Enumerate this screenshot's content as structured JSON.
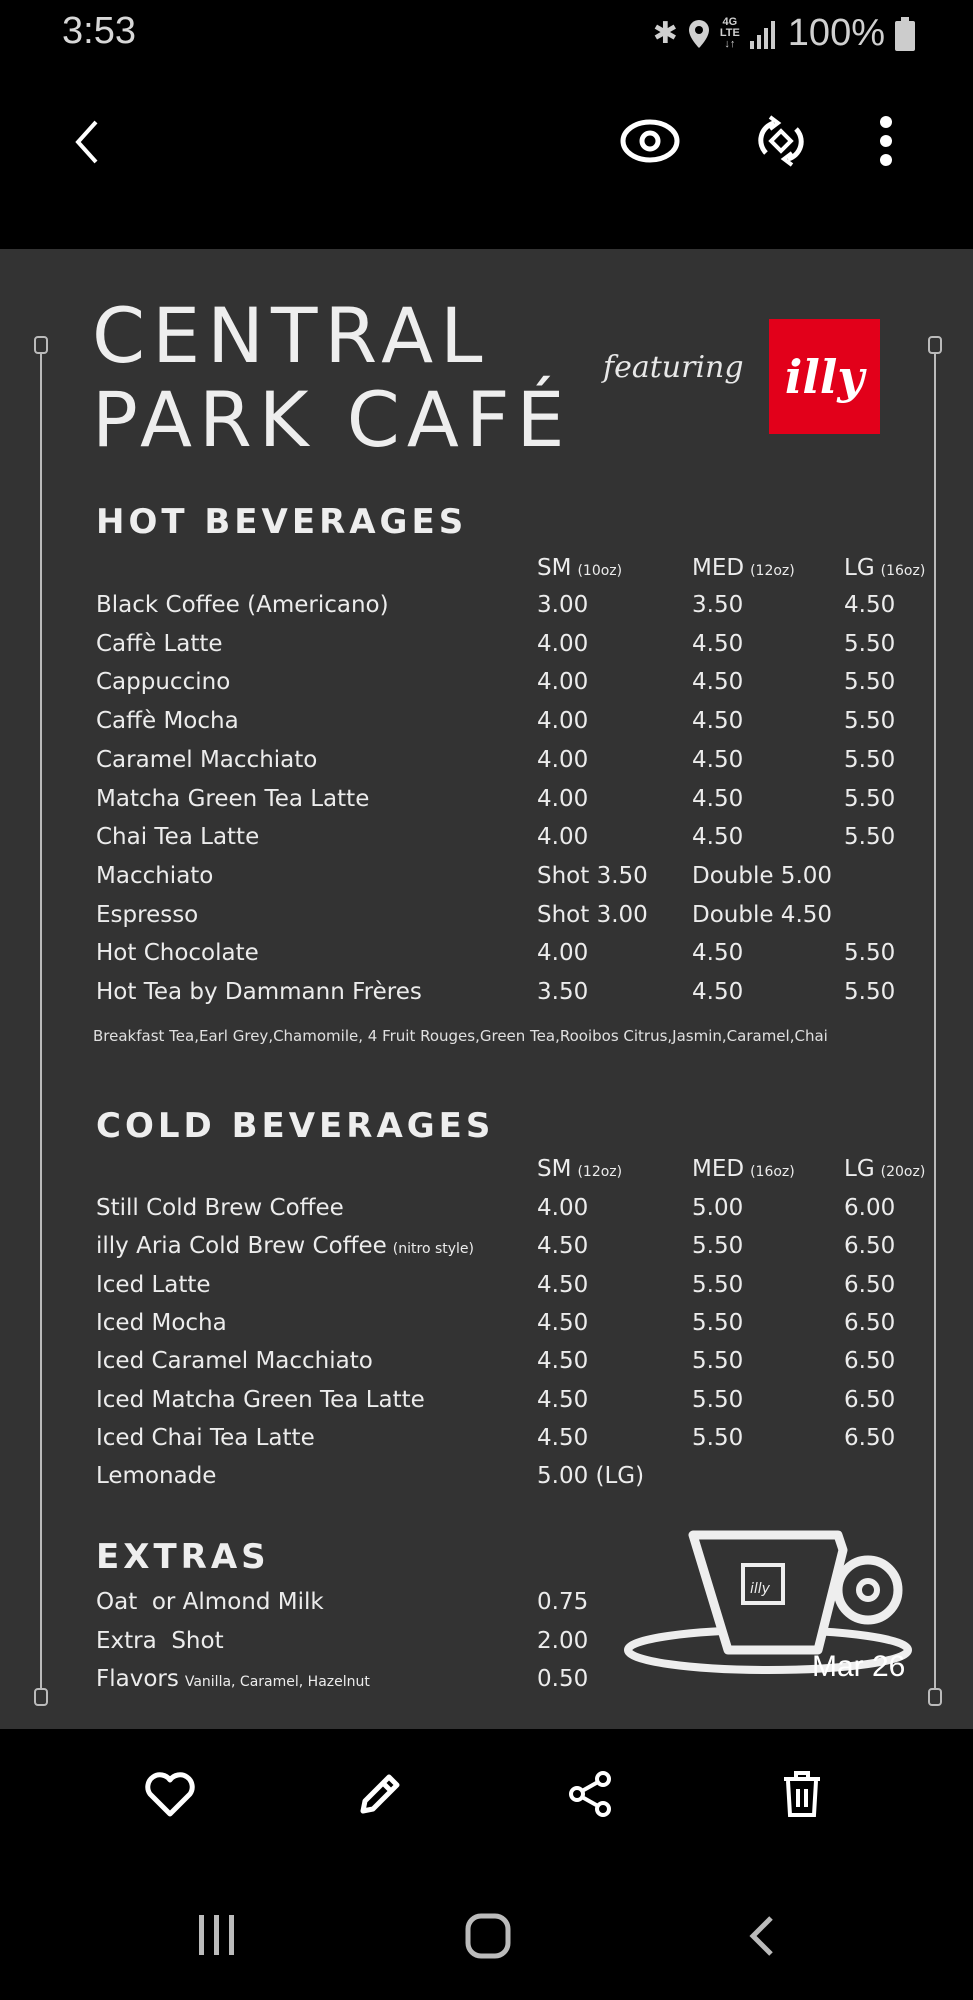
{
  "status_bar": {
    "time": "3:53",
    "battery": "100%",
    "icons": [
      "bluetooth-icon",
      "location-icon",
      "4g-lte-icon",
      "signal-icon",
      "battery-icon"
    ]
  },
  "top_bar": {
    "icons": [
      "back-icon",
      "eye-icon",
      "rotate-icon",
      "more-icon"
    ]
  },
  "menu": {
    "title_line1": "CENTRAL",
    "title_line2": "PARK CAFÉ",
    "featuring": "featuring",
    "logo_text": "illy",
    "hot": {
      "heading": "HOT BEVERAGES",
      "cols": [
        {
          "label": "SM",
          "size": "(10oz)"
        },
        {
          "label": "MED",
          "size": "(12oz)"
        },
        {
          "label": "LG",
          "size": "(16oz)"
        }
      ],
      "items": [
        {
          "name": "Black Coffee (Americano)",
          "sm": "3.00",
          "med": "3.50",
          "lg": "4.50"
        },
        {
          "name": "Caffè Latte",
          "sm": "4.00",
          "med": "4.50",
          "lg": "5.50"
        },
        {
          "name": "Cappuccino",
          "sm": "4.00",
          "med": "4.50",
          "lg": "5.50"
        },
        {
          "name": "Caffè Mocha",
          "sm": "4.00",
          "med": "4.50",
          "lg": "5.50"
        },
        {
          "name": "Caramel Macchiato",
          "sm": "4.00",
          "med": "4.50",
          "lg": "5.50"
        },
        {
          "name": "Matcha Green Tea Latte",
          "sm": "4.00",
          "med": "4.50",
          "lg": "5.50"
        },
        {
          "name": "Chai Tea Latte",
          "sm": "4.00",
          "med": "4.50",
          "lg": "5.50"
        },
        {
          "name": "Macchiato",
          "sm": "Shot 3.50",
          "med": "Double 5.00",
          "lg": ""
        },
        {
          "name": "Espresso",
          "sm": "Shot 3.00",
          "med": "Double 4.50",
          "lg": ""
        },
        {
          "name": "Hot Chocolate",
          "sm": "4.00",
          "med": "4.50",
          "lg": "5.50"
        },
        {
          "name": "Hot Tea by Dammann Frères",
          "sm": "3.50",
          "med": "4.50",
          "lg": "5.50"
        }
      ],
      "note": "Breakfast Tea,Earl Grey,Chamomile, 4 Fruit Rouges,Green Tea,Rooibos Citrus,Jasmin,Caramel,Chai"
    },
    "cold": {
      "heading": "COLD BEVERAGES",
      "cols": [
        {
          "label": "SM",
          "size": "(12oz)"
        },
        {
          "label": "MED",
          "size": "(16oz)"
        },
        {
          "label": "LG",
          "size": "(20oz)"
        }
      ],
      "items": [
        {
          "name": "Still Cold Brew Coffee",
          "sm": "4.00",
          "med": "5.00",
          "lg": "6.00"
        },
        {
          "name": "illy Aria Cold Brew Coffee",
          "extra": "(nitro style)",
          "sm": "4.50",
          "med": "5.50",
          "lg": "6.50"
        },
        {
          "name": "Iced Latte",
          "sm": "4.50",
          "med": "5.50",
          "lg": "6.50"
        },
        {
          "name": "Iced Mocha",
          "sm": "4.50",
          "med": "5.50",
          "lg": "6.50"
        },
        {
          "name": "Iced Caramel Macchiato",
          "sm": "4.50",
          "med": "5.50",
          "lg": "6.50"
        },
        {
          "name": "Iced Matcha Green Tea Latte",
          "sm": "4.50",
          "med": "5.50",
          "lg": "6.50"
        },
        {
          "name": "Iced Chai Tea Latte",
          "sm": "4.50",
          "med": "5.50",
          "lg": "6.50"
        },
        {
          "name": "Lemonade",
          "sm": "5.00 (LG)",
          "med": "",
          "lg": ""
        }
      ]
    },
    "extras": {
      "heading": "EXTRAS",
      "items": [
        {
          "name": "Oat  or Almond Milk",
          "price": "0.75"
        },
        {
          "name": "Extra  Shot",
          "price": "2.00"
        },
        {
          "name": "Flavors",
          "extra": "Vanilla, Caramel, Hazelnut",
          "price": "0.50"
        }
      ]
    },
    "cup_logo_text": "illy"
  },
  "date_overlay": "Mar 26",
  "bottom_bar": {
    "icons": [
      "heart-icon",
      "edit-icon",
      "share-icon",
      "delete-icon"
    ]
  },
  "nav_bar": {
    "icons": [
      "recents-icon",
      "home-icon",
      "back-icon"
    ]
  }
}
